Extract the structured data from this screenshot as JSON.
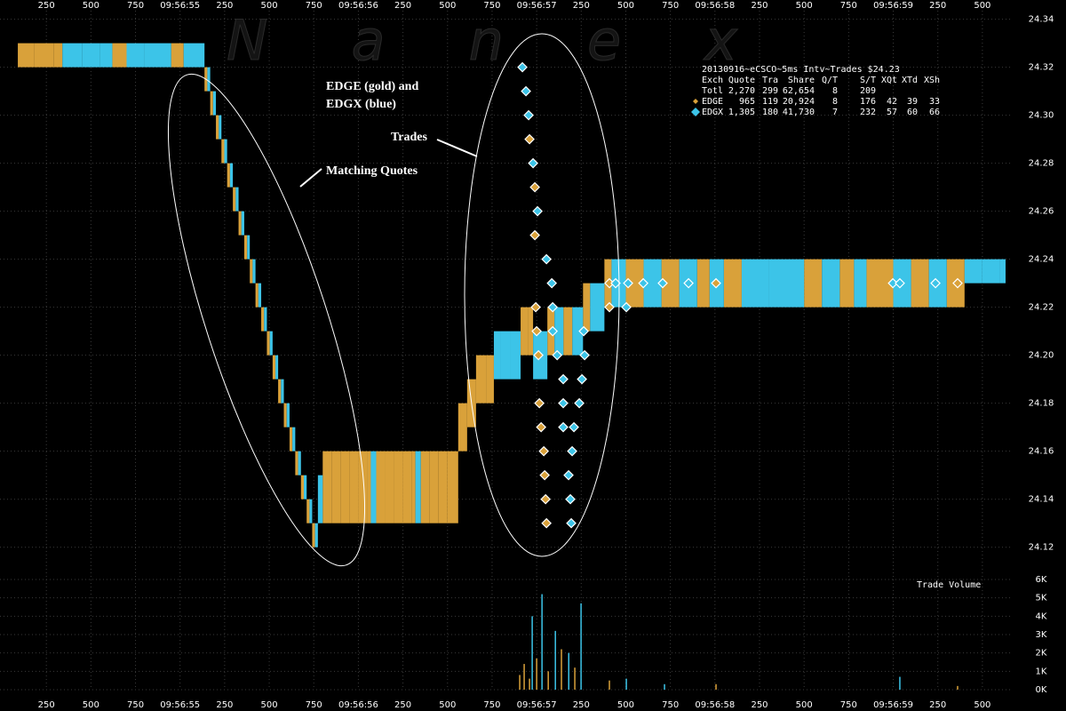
{
  "chart_data": {
    "type": "quote-trade",
    "title": "20130916~eCSCO~5ms Intv~Trades $24.23",
    "watermark": "Nanex",
    "annotations": [
      "EDGE (gold) and",
      "EDGX (blue)",
      "Trades",
      "Matching Quotes"
    ],
    "xlim": [
      53.99,
      59.67
    ],
    "xticks": [
      {
        "value": 54.25,
        "label": "250"
      },
      {
        "value": 54.5,
        "label": "500"
      },
      {
        "value": 54.75,
        "label": "750"
      },
      {
        "value": 55,
        "label": "09:56:55"
      },
      {
        "value": 55.25,
        "label": "250"
      },
      {
        "value": 55.5,
        "label": "500"
      },
      {
        "value": 55.75,
        "label": "750"
      },
      {
        "value": 56,
        "label": "09:56:56"
      },
      {
        "value": 56.25,
        "label": "250"
      },
      {
        "value": 56.5,
        "label": "500"
      },
      {
        "value": 56.75,
        "label": "750"
      },
      {
        "value": 57,
        "label": "09:56:57"
      },
      {
        "value": 57.25,
        "label": "250"
      },
      {
        "value": 57.5,
        "label": "500"
      },
      {
        "value": 57.75,
        "label": "750"
      },
      {
        "value": 58,
        "label": "09:56:58"
      },
      {
        "value": 58.25,
        "label": "250"
      },
      {
        "value": 58.5,
        "label": "500"
      },
      {
        "value": 58.75,
        "label": "750"
      },
      {
        "value": 59,
        "label": "09:56:59"
      },
      {
        "value": 59.25,
        "label": "250"
      },
      {
        "value": 59.5,
        "label": "500"
      }
    ],
    "ylim": [
      24.111,
      24.348
    ],
    "yticks": [
      24.12,
      24.14,
      24.16,
      24.18,
      {
        "value": 24.2,
        "label": "24.20"
      },
      24.22,
      24.24,
      24.26,
      24.28,
      {
        "value": 24.3,
        "label": "24.30"
      },
      24.32,
      24.34
    ],
    "grid": true,
    "volume": {
      "label": "Trade Volume",
      "ylim": [
        0,
        6000
      ],
      "yticks": [
        {
          "value": 0,
          "label": "0K"
        },
        {
          "value": 1000,
          "label": "1K"
        },
        {
          "value": 2000,
          "label": "2K"
        },
        {
          "value": 3000,
          "label": "3K"
        },
        {
          "value": 4000,
          "label": "4K"
        },
        {
          "value": 5000,
          "label": "5K"
        },
        {
          "value": 6000,
          "label": "6K"
        }
      ]
    },
    "stats_header": [
      "Exch",
      "Quote",
      "Tra",
      "Share",
      "Q/T",
      "S/T",
      "XQt",
      "XTd",
      "XSh"
    ],
    "total_row": {
      "label": "Totl",
      "values": [
        "2,270",
        "299",
        "62,654",
        "8",
        "209"
      ]
    },
    "series": [
      {
        "name": "EDGE",
        "color": "#d9a13a",
        "stats": [
          "965",
          "119",
          "20,924",
          "8",
          "176",
          "42",
          "39",
          "33"
        ],
        "quotes": {
          "x": [
            54.09,
            54.18,
            54.29,
            54.62,
            54.95,
            55.137,
            55.169,
            55.201,
            55.232,
            55.264,
            55.296,
            55.328,
            55.36,
            55.391,
            55.423,
            55.455,
            55.487,
            55.519,
            55.55,
            55.582,
            55.614,
            55.646,
            55.678,
            55.71,
            55.741,
            55.8,
            55.85,
            55.9,
            55.95,
            56.0,
            56.05,
            56.1,
            56.15,
            56.2,
            56.25,
            56.3,
            56.35,
            56.4,
            56.45,
            56.5,
            56.56,
            56.61,
            56.66,
            56.72,
            56.91,
            56.95,
            57.06,
            57.15,
            57.26,
            57.38,
            57.5,
            57.7,
            57.9,
            58.05,
            58.5,
            58.7,
            58.85,
            59.1,
            59.3
          ],
          "bid": [
            24.32,
            24.32,
            24.32,
            24.32,
            24.32,
            24.31,
            24.3,
            24.29,
            24.28,
            24.27,
            24.26,
            24.25,
            24.24,
            24.23,
            24.22,
            24.21,
            24.2,
            24.19,
            24.18,
            24.17,
            24.16,
            24.15,
            24.14,
            24.13,
            24.12,
            24.13,
            24.13,
            24.13,
            24.13,
            24.13,
            24.13,
            24.13,
            24.13,
            24.13,
            24.13,
            24.13,
            24.13,
            24.13,
            24.13,
            24.13,
            24.16,
            24.17,
            24.18,
            24.18,
            24.2,
            24.2,
            24.2,
            24.2,
            24.21,
            24.22,
            24.22,
            24.22,
            24.22,
            24.22,
            24.22,
            24.22,
            24.22,
            24.22,
            24.22
          ],
          "ask": [
            24.33,
            24.33,
            24.33,
            24.33,
            24.33,
            24.32,
            24.31,
            24.3,
            24.29,
            24.28,
            24.27,
            24.26,
            24.25,
            24.24,
            24.23,
            24.22,
            24.21,
            24.2,
            24.19,
            24.18,
            24.17,
            24.16,
            24.15,
            24.14,
            24.13,
            24.16,
            24.16,
            24.16,
            24.16,
            24.16,
            24.16,
            24.16,
            24.16,
            24.16,
            24.16,
            24.16,
            24.16,
            24.16,
            24.16,
            24.16,
            24.18,
            24.19,
            24.2,
            24.2,
            24.22,
            24.22,
            24.22,
            24.22,
            24.23,
            24.24,
            24.24,
            24.24,
            24.24,
            24.24,
            24.24,
            24.24,
            24.24,
            24.24,
            24.24
          ]
        },
        "trades": {
          "x": [
            56.96,
            56.99,
            56.99,
            56.995,
            57.0,
            57.01,
            57.015,
            57.025,
            57.04,
            57.045,
            57.05,
            57.055,
            57.408,
            57.408,
            58.006,
            59.361
          ],
          "price": [
            24.29,
            24.27,
            24.25,
            24.22,
            24.21,
            24.2,
            24.18,
            24.17,
            24.16,
            24.15,
            24.14,
            24.13,
            24.23,
            24.22,
            24.23,
            24.23
          ]
        },
        "volume": {
          "x": [
            56.905,
            56.93,
            56.96,
            57.0,
            57.065,
            57.139,
            57.214,
            57.408,
            58.006,
            59.361
          ],
          "values": [
            800,
            1400,
            600,
            1700,
            1000,
            2200,
            1200,
            500,
            300,
            200
          ]
        }
      },
      {
        "name": "EDGX",
        "color": "#3cc4e8",
        "stats": [
          "1,305",
          "180",
          "41,730",
          "7",
          "232",
          "57",
          "60",
          "66"
        ],
        "quotes": {
          "x": [
            54.34,
            54.45,
            54.55,
            54.7,
            54.8,
            55.02,
            55.153,
            55.185,
            55.217,
            55.248,
            55.28,
            55.312,
            55.344,
            55.376,
            55.407,
            55.439,
            55.471,
            55.503,
            55.535,
            55.566,
            55.598,
            55.63,
            55.662,
            55.694,
            55.726,
            55.757,
            55.773,
            56.07,
            56.32,
            56.76,
            56.8,
            56.85,
            56.98,
            57.1,
            57.2,
            57.3,
            57.42,
            57.6,
            57.8,
            57.97,
            58.15,
            58.3,
            58.6,
            58.78,
            59.0,
            59.2,
            59.4,
            59.5,
            59.6
          ],
          "bid": [
            24.32,
            24.32,
            24.32,
            24.32,
            24.32,
            24.32,
            24.31,
            24.3,
            24.29,
            24.28,
            24.27,
            24.26,
            24.25,
            24.24,
            24.23,
            24.22,
            24.21,
            24.2,
            24.19,
            24.18,
            24.17,
            24.16,
            24.15,
            24.14,
            24.13,
            24.12,
            24.13,
            24.13,
            24.13,
            24.19,
            24.19,
            24.19,
            24.19,
            24.2,
            24.2,
            24.21,
            24.22,
            24.22,
            24.22,
            24.22,
            24.22,
            24.22,
            24.22,
            24.22,
            24.22,
            24.22,
            24.23,
            24.23,
            24.23
          ],
          "ask": [
            24.33,
            24.33,
            24.33,
            24.33,
            24.33,
            24.33,
            24.32,
            24.31,
            24.3,
            24.29,
            24.28,
            24.27,
            24.26,
            24.25,
            24.24,
            24.23,
            24.22,
            24.21,
            24.2,
            24.19,
            24.18,
            24.17,
            24.16,
            24.15,
            24.14,
            24.13,
            24.15,
            24.16,
            24.16,
            24.21,
            24.21,
            24.21,
            24.21,
            24.22,
            24.22,
            24.23,
            24.24,
            24.24,
            24.24,
            24.24,
            24.24,
            24.24,
            24.24,
            24.24,
            24.24,
            24.24,
            24.24,
            24.24,
            24.24
          ]
        },
        "trades": {
          "x": [
            56.92,
            56.94,
            56.955,
            56.98,
            57.005,
            57.055,
            57.085,
            57.09,
            57.09,
            57.264,
            57.115,
            57.269,
            57.149,
            57.254,
            57.149,
            57.239,
            57.149,
            57.209,
            57.199,
            57.179,
            57.189,
            57.194,
            57.443,
            57.503,
            57.513,
            57.598,
            57.707,
            57.852,
            58.998,
            59.037,
            59.237
          ],
          "price": [
            24.32,
            24.31,
            24.3,
            24.28,
            24.26,
            24.24,
            24.23,
            24.22,
            24.21,
            24.21,
            24.2,
            24.2,
            24.19,
            24.19,
            24.18,
            24.18,
            24.17,
            24.17,
            24.16,
            24.15,
            24.14,
            24.13,
            24.23,
            24.22,
            24.23,
            24.23,
            24.23,
            24.23,
            24.23,
            24.23,
            24.23
          ]
        },
        "volume": {
          "x": [
            56.975,
            57.03,
            57.105,
            57.18,
            57.249,
            57.503,
            57.717,
            59.037
          ],
          "values": [
            4000,
            5200,
            3200,
            2000,
            4700,
            600,
            300,
            700
          ]
        }
      }
    ]
  }
}
